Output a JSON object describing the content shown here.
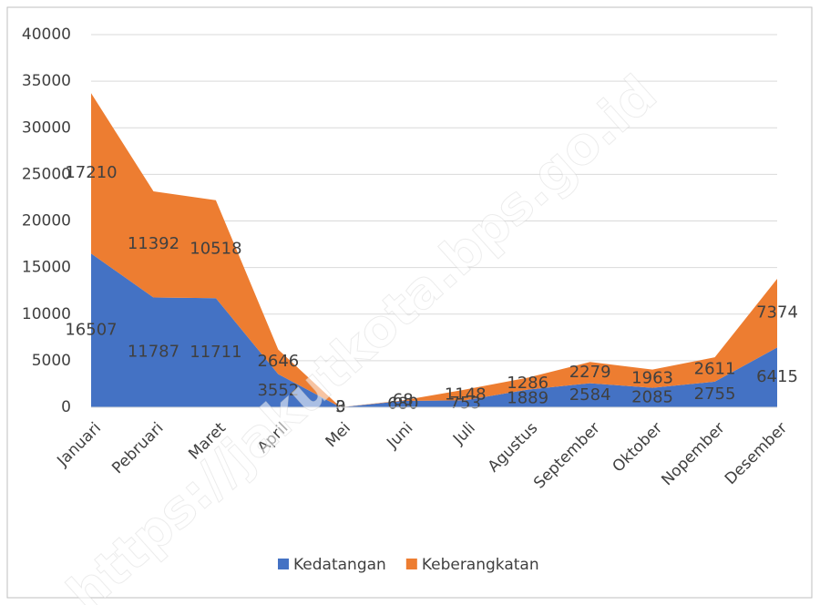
{
  "chart_data": {
    "type": "stacked_area",
    "categories": [
      "Januari",
      "Pebruari",
      "Maret",
      "April",
      "Mei",
      "Juni",
      "Juli",
      "Agustus",
      "September",
      "Oktober",
      "Nopember",
      "Desember"
    ],
    "series": [
      {
        "name": "Kedatangan",
        "color": "#4472c4",
        "values": [
          16507,
          11787,
          11711,
          3552,
          3,
          680,
          753,
          1889,
          2584,
          2085,
          2755,
          6415
        ]
      },
      {
        "name": "Keberangkatan",
        "color": "#ed7d31",
        "values": [
          17210,
          11392,
          10518,
          2646,
          0,
          68,
          1148,
          1286,
          2279,
          1963,
          2611,
          7374
        ]
      }
    ],
    "ylim": [
      0,
      40000
    ],
    "yticks": [
      0,
      5000,
      10000,
      15000,
      20000,
      25000,
      30000,
      35000,
      40000
    ],
    "grid": true,
    "legend": "bottom",
    "watermark": "https://jakutkota.bps.go.id"
  }
}
